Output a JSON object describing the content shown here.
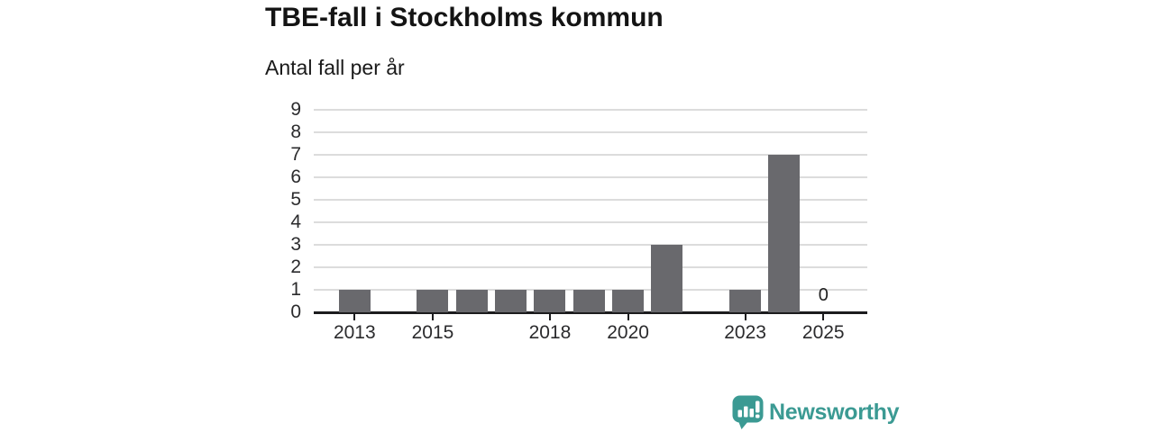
{
  "header": {
    "title": "TBE-fall i Stockholms kommun",
    "subtitle": "Antal fall per år"
  },
  "chart_data": {
    "type": "bar",
    "title": "TBE-fall i Stockholms kommun",
    "subtitle": "Antal fall per år",
    "categories": [
      "2013",
      "2014",
      "2015",
      "2016",
      "2017",
      "2018",
      "2019",
      "2020",
      "2021",
      "2022",
      "2023",
      "2024",
      "2025"
    ],
    "values": [
      1,
      0,
      1,
      1,
      1,
      1,
      1,
      1,
      3,
      0,
      1,
      7,
      0
    ],
    "x_tick_labels": [
      "2013",
      "2015",
      "2018",
      "2020",
      "2023",
      "2025"
    ],
    "y_ticks": [
      "0",
      "1",
      "2",
      "3",
      "4",
      "5",
      "6",
      "7",
      "8",
      "9"
    ],
    "ylim": [
      0,
      9
    ],
    "xlabel": "",
    "ylabel": "Antal fall per år",
    "grid": "horizontal",
    "legend": "none",
    "zero_value_labels": {
      "2025": "0"
    },
    "bar_color": "#69696d",
    "grid_color": "#dcdcdc",
    "axis_color": "#1c1c1e",
    "tick_label_color": "#2b2b2d"
  },
  "branding": {
    "logo_text": "Newsworthy",
    "logo_icon": "newsworthy-speech-bubble-bar-chart-icon",
    "brand_color": "#3b9a93"
  }
}
